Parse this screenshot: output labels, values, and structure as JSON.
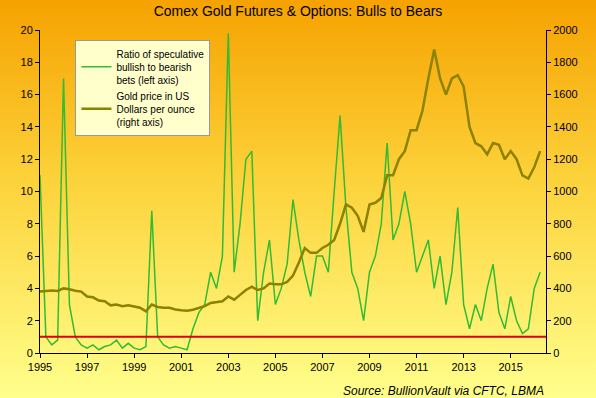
{
  "chart_data": {
    "type": "line",
    "title": "Comex Gold Futures & Options: Bulls to Bears",
    "source": "Source: BullionVault via CFTC, LBMA",
    "x": [
      1995,
      1995.25,
      1995.5,
      1995.75,
      1996,
      1996.25,
      1996.5,
      1996.75,
      1997,
      1997.25,
      1997.5,
      1997.75,
      1998,
      1998.25,
      1998.5,
      1998.75,
      1999,
      1999.25,
      1999.5,
      1999.75,
      2000,
      2000.25,
      2000.5,
      2000.75,
      2001,
      2001.25,
      2001.5,
      2001.75,
      2002,
      2002.25,
      2002.5,
      2002.75,
      2003,
      2003.25,
      2003.5,
      2003.75,
      2004,
      2004.25,
      2004.5,
      2004.75,
      2005,
      2005.25,
      2005.5,
      2005.75,
      2006,
      2006.25,
      2006.5,
      2006.75,
      2007,
      2007.25,
      2007.5,
      2007.75,
      2008,
      2008.25,
      2008.5,
      2008.75,
      2009,
      2009.25,
      2009.5,
      2009.75,
      2010,
      2010.25,
      2010.5,
      2010.75,
      2011,
      2011.25,
      2011.5,
      2011.75,
      2012,
      2012.25,
      2012.5,
      2012.75,
      2013,
      2013.25,
      2013.5,
      2013.75,
      2014,
      2014.25,
      2014.5,
      2014.75,
      2015,
      2015.25,
      2015.5,
      2015.75,
      2016,
      2016.25
    ],
    "xlim": [
      1995,
      2016.5
    ],
    "xticks": [
      1995,
      1997,
      1999,
      2001,
      2003,
      2005,
      2007,
      2009,
      2011,
      2013,
      2015
    ],
    "ylim": [
      0,
      20
    ],
    "yticks": [
      0,
      2,
      4,
      6,
      8,
      10,
      12,
      14,
      16,
      18,
      20
    ],
    "y2lim": [
      0,
      2000
    ],
    "y2ticks": [
      0,
      200,
      400,
      600,
      800,
      1000,
      1200,
      1400,
      1600,
      1800,
      2000
    ],
    "grid": false,
    "legend": "upper left",
    "hline": {
      "value": 1,
      "color": "#e00000"
    },
    "series": [
      {
        "name": "Ratio of speculative bullish to bearish bets (left axis)",
        "color": "#33bb33",
        "values": [
          11,
          1,
          0.5,
          0.8,
          17,
          3,
          1,
          0.5,
          0.3,
          0.5,
          0.2,
          0.4,
          0.5,
          0.8,
          0.3,
          0.6,
          0.3,
          0.2,
          0.4,
          8.8,
          1,
          0.5,
          0.3,
          0.4,
          0.3,
          0.2,
          1.5,
          2.5,
          3,
          5,
          4,
          6,
          19.8,
          5,
          8,
          12,
          12.5,
          2,
          5,
          7,
          3,
          4,
          5.5,
          9.5,
          7,
          5,
          3.5,
          6,
          6,
          5,
          10,
          14.7,
          9,
          5,
          4,
          2,
          5,
          6,
          8,
          13,
          7,
          8,
          10,
          8,
          5,
          6,
          7,
          4,
          6,
          3,
          5,
          9,
          3,
          1.5,
          3,
          2,
          4,
          5.5,
          2.5,
          1.5,
          3.5,
          2,
          1.2,
          1.5,
          4,
          5
        ]
      },
      {
        "name": "Gold price in US Dollars per ounce (right axis)",
        "color": "#8c8200",
        "axis": "y2",
        "values": [
          380,
          385,
          387,
          384,
          400,
          395,
          385,
          380,
          350,
          345,
          325,
          320,
          295,
          300,
          290,
          295,
          288,
          280,
          258,
          300,
          285,
          280,
          280,
          270,
          265,
          262,
          268,
          280,
          290,
          310,
          315,
          320,
          350,
          330,
          360,
          390,
          410,
          390,
          400,
          430,
          425,
          425,
          440,
          480,
          560,
          650,
          620,
          620,
          650,
          670,
          700,
          800,
          920,
          900,
          850,
          750,
          920,
          930,
          960,
          1100,
          1100,
          1200,
          1250,
          1380,
          1380,
          1500,
          1700,
          1880,
          1700,
          1600,
          1700,
          1720,
          1650,
          1400,
          1300,
          1280,
          1230,
          1300,
          1290,
          1200,
          1250,
          1200,
          1100,
          1080,
          1150,
          1250
        ]
      }
    ]
  }
}
